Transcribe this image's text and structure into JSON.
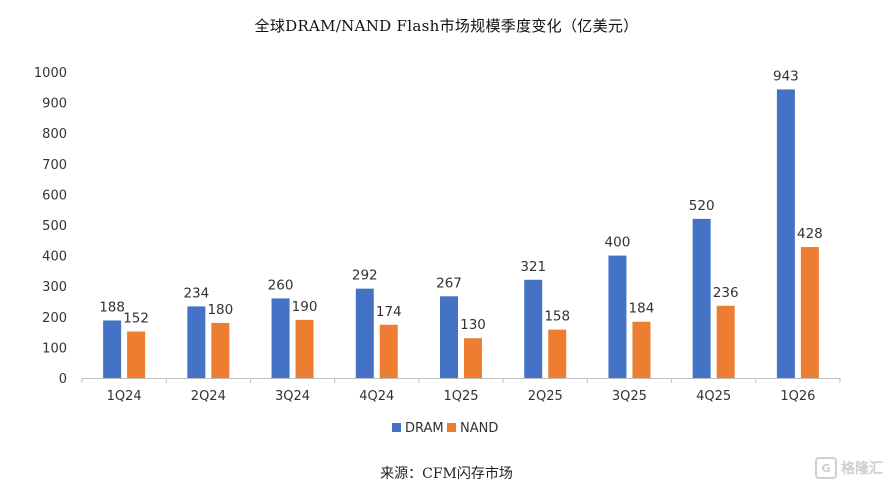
{
  "title": "全球DRAM/NAND Flash市场规模季度变化（亿美元）",
  "source": "来源：CFM闪存市场",
  "watermark": {
    "text": "格隆汇",
    "icon": "g-logo-icon"
  },
  "chart_data": {
    "type": "bar",
    "categories": [
      "1Q24",
      "2Q24",
      "3Q24",
      "4Q24",
      "1Q25",
      "2Q25",
      "3Q25",
      "4Q25",
      "1Q26"
    ],
    "series": [
      {
        "name": "DRAM",
        "color": "#4472C4",
        "values": [
          188,
          234,
          260,
          292,
          267,
          321,
          400,
          520,
          943
        ]
      },
      {
        "name": "NAND",
        "color": "#ED7D31",
        "values": [
          152,
          180,
          190,
          174,
          130,
          158,
          184,
          236,
          428
        ]
      }
    ],
    "ylim": [
      0,
      1000
    ],
    "yticks": [
      0,
      100,
      200,
      300,
      400,
      500,
      600,
      700,
      800,
      900,
      1000
    ],
    "grid": false,
    "legend": "bottom-center",
    "data_labels": true,
    "xlabel": "",
    "ylabel": ""
  }
}
